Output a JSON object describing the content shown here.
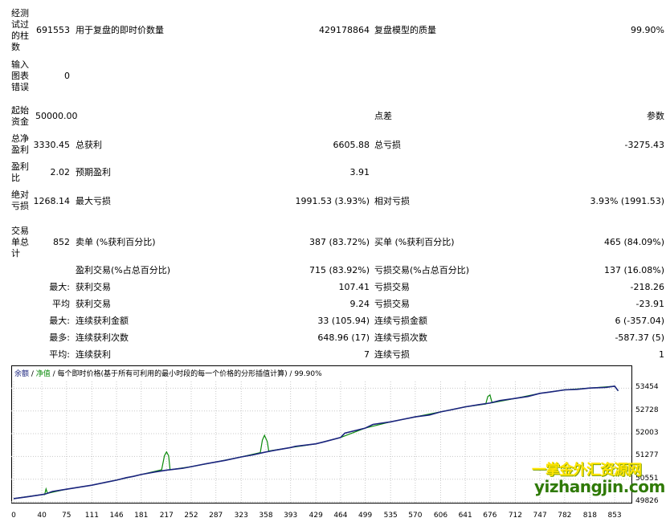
{
  "stats": {
    "bars_tested_label": "经测试过的柱数",
    "bars_tested_value": "691553",
    "ticks_label": "用于复盘的即时价数量",
    "ticks_value": "429178864",
    "quality_label": "复盘模型的质量",
    "quality_value": "99.90%",
    "errors_label": "输入图表错误",
    "errors_value": "0",
    "deposit_label": "起始资金",
    "deposit_value": "50000.00",
    "spread_label": "点差",
    "spread_value": "参数",
    "net_label": "总净盈利",
    "net_value": "3330.45",
    "gross_profit_label": "总获利",
    "gross_profit_value": "6605.88",
    "gross_loss_label": "总亏损",
    "gross_loss_value": "-3275.43",
    "pf_label": "盈利比",
    "pf_value": "2.02",
    "expected_label": "预期盈利",
    "expected_value": "3.91",
    "abs_dd_label": "绝对亏损",
    "abs_dd_value": "1268.14",
    "max_dd_label": "最大亏损",
    "max_dd_value": "1991.53 (3.93%)",
    "rel_dd_label": "相对亏损",
    "rel_dd_value": "3.93% (1991.53)",
    "total_trades_label": "交易单总计",
    "total_trades_value": "852",
    "short_label": "卖单 (%获利百分比)",
    "short_value": "387 (83.72%)",
    "long_label": "买单 (%获利百分比)",
    "long_value": "465 (84.09%)",
    "profit_trades_label": "盈利交易(%占总百分比)",
    "profit_trades_value": "715 (83.92%)",
    "loss_trades_label": "亏损交易(%占总百分比)",
    "loss_trades_value": "137 (16.08%)",
    "largest_prefix": "最大:",
    "largest_profit_label": "获利交易",
    "largest_profit_value": "107.41",
    "largest_loss_label": "亏损交易",
    "largest_loss_value": "-218.26",
    "avg_prefix": "平均",
    "avg_profit_label": "获利交易",
    "avg_profit_value": "9.24",
    "avg_loss_label": "亏损交易",
    "avg_loss_value": "-23.91",
    "max_prefix": "最大:",
    "cons_wins_amount_label": "连续获利金额",
    "cons_wins_amount_value": "33 (105.94)",
    "cons_loss_amount_label": "连续亏损金额",
    "cons_loss_amount_value": "6 (-357.04)",
    "most_prefix": "最多:",
    "cons_profit_label": "连续获利次数",
    "cons_profit_value": "648.96 (17)",
    "cons_loss_label": "连续亏损次数",
    "cons_loss_value": "-587.37 (5)",
    "avg2_prefix": "平均:",
    "avg_cons_wins_label": "连续获利",
    "avg_cons_wins_value": "7",
    "avg_cons_loss_label": "连续亏损",
    "avg_cons_loss_value": "1"
  },
  "chart_header": {
    "balance": "余额",
    "sep1": " / ",
    "equity": "净值",
    "rest": " / 每个即时价格(基于所有可利用的最小时段的每一个价格的分形插值计算) / 99.90%"
  },
  "watermark": {
    "line1": "一掌金外汇资源网",
    "line2": "yizhangjin.com"
  },
  "colors": {
    "balance": "#1a237e",
    "equity": "#0a8a0a"
  },
  "chart_data": {
    "type": "line",
    "title": "",
    "xlabel": "",
    "ylabel": "",
    "x_ticks": [
      "0",
      "40",
      "75",
      "111",
      "146",
      "181",
      "217",
      "252",
      "287",
      "323",
      "358",
      "393",
      "429",
      "464",
      "499",
      "535",
      "570",
      "606",
      "641",
      "676",
      "712",
      "747",
      "782",
      "818",
      "853"
    ],
    "y_ticks": [
      "53454",
      "52728",
      "52003",
      "51277",
      "50551",
      "49826"
    ],
    "xlim": [
      0,
      870
    ],
    "ylim": [
      49826,
      53670
    ],
    "grid": true,
    "series": [
      {
        "name": "余额",
        "x": [
          0,
          20,
          40,
          45,
          48,
          55,
          75,
          100,
          111,
          130,
          146,
          160,
          170,
          181,
          200,
          217,
          240,
          252,
          270,
          287,
          300,
          323,
          340,
          358,
          370,
          393,
          400,
          429,
          440,
          464,
          470,
          499,
          510,
          535,
          550,
          570,
          590,
          606,
          620,
          641,
          660,
          676,
          690,
          712,
          730,
          747,
          760,
          782,
          800,
          818,
          840,
          853,
          858
        ],
        "y": [
          49930,
          49990,
          50060,
          50080,
          50100,
          50160,
          50230,
          50320,
          50360,
          50450,
          50520,
          50600,
          50640,
          50700,
          50780,
          50840,
          50900,
          50950,
          51030,
          51100,
          51150,
          51260,
          51330,
          51420,
          51470,
          51560,
          51600,
          51680,
          51740,
          51880,
          52020,
          52180,
          52300,
          52380,
          52450,
          52540,
          52600,
          52700,
          52760,
          52860,
          52930,
          52980,
          53060,
          53130,
          53190,
          53290,
          53330,
          53400,
          53420,
          53460,
          53480,
          53520,
          53370
        ]
      },
      {
        "name": "净值",
        "x": [
          0,
          40,
          44,
          46,
          48,
          75,
          111,
          146,
          181,
          210,
          214,
          217,
          220,
          222,
          252,
          287,
          323,
          350,
          353,
          356,
          360,
          362,
          393,
          429,
          464,
          499,
          535,
          570,
          606,
          641,
          670,
          673,
          676,
          679,
          712,
          747,
          782,
          818,
          853,
          858
        ],
        "y": [
          49930,
          50060,
          50060,
          50240,
          50100,
          50230,
          50360,
          50520,
          50700,
          50850,
          51300,
          51420,
          51300,
          50850,
          50950,
          51100,
          51260,
          51400,
          51800,
          51950,
          51750,
          51450,
          51560,
          51680,
          51880,
          52180,
          52380,
          52540,
          52700,
          52860,
          52950,
          53190,
          53240,
          52990,
          53130,
          53290,
          53400,
          53460,
          53520,
          53370
        ]
      }
    ]
  }
}
